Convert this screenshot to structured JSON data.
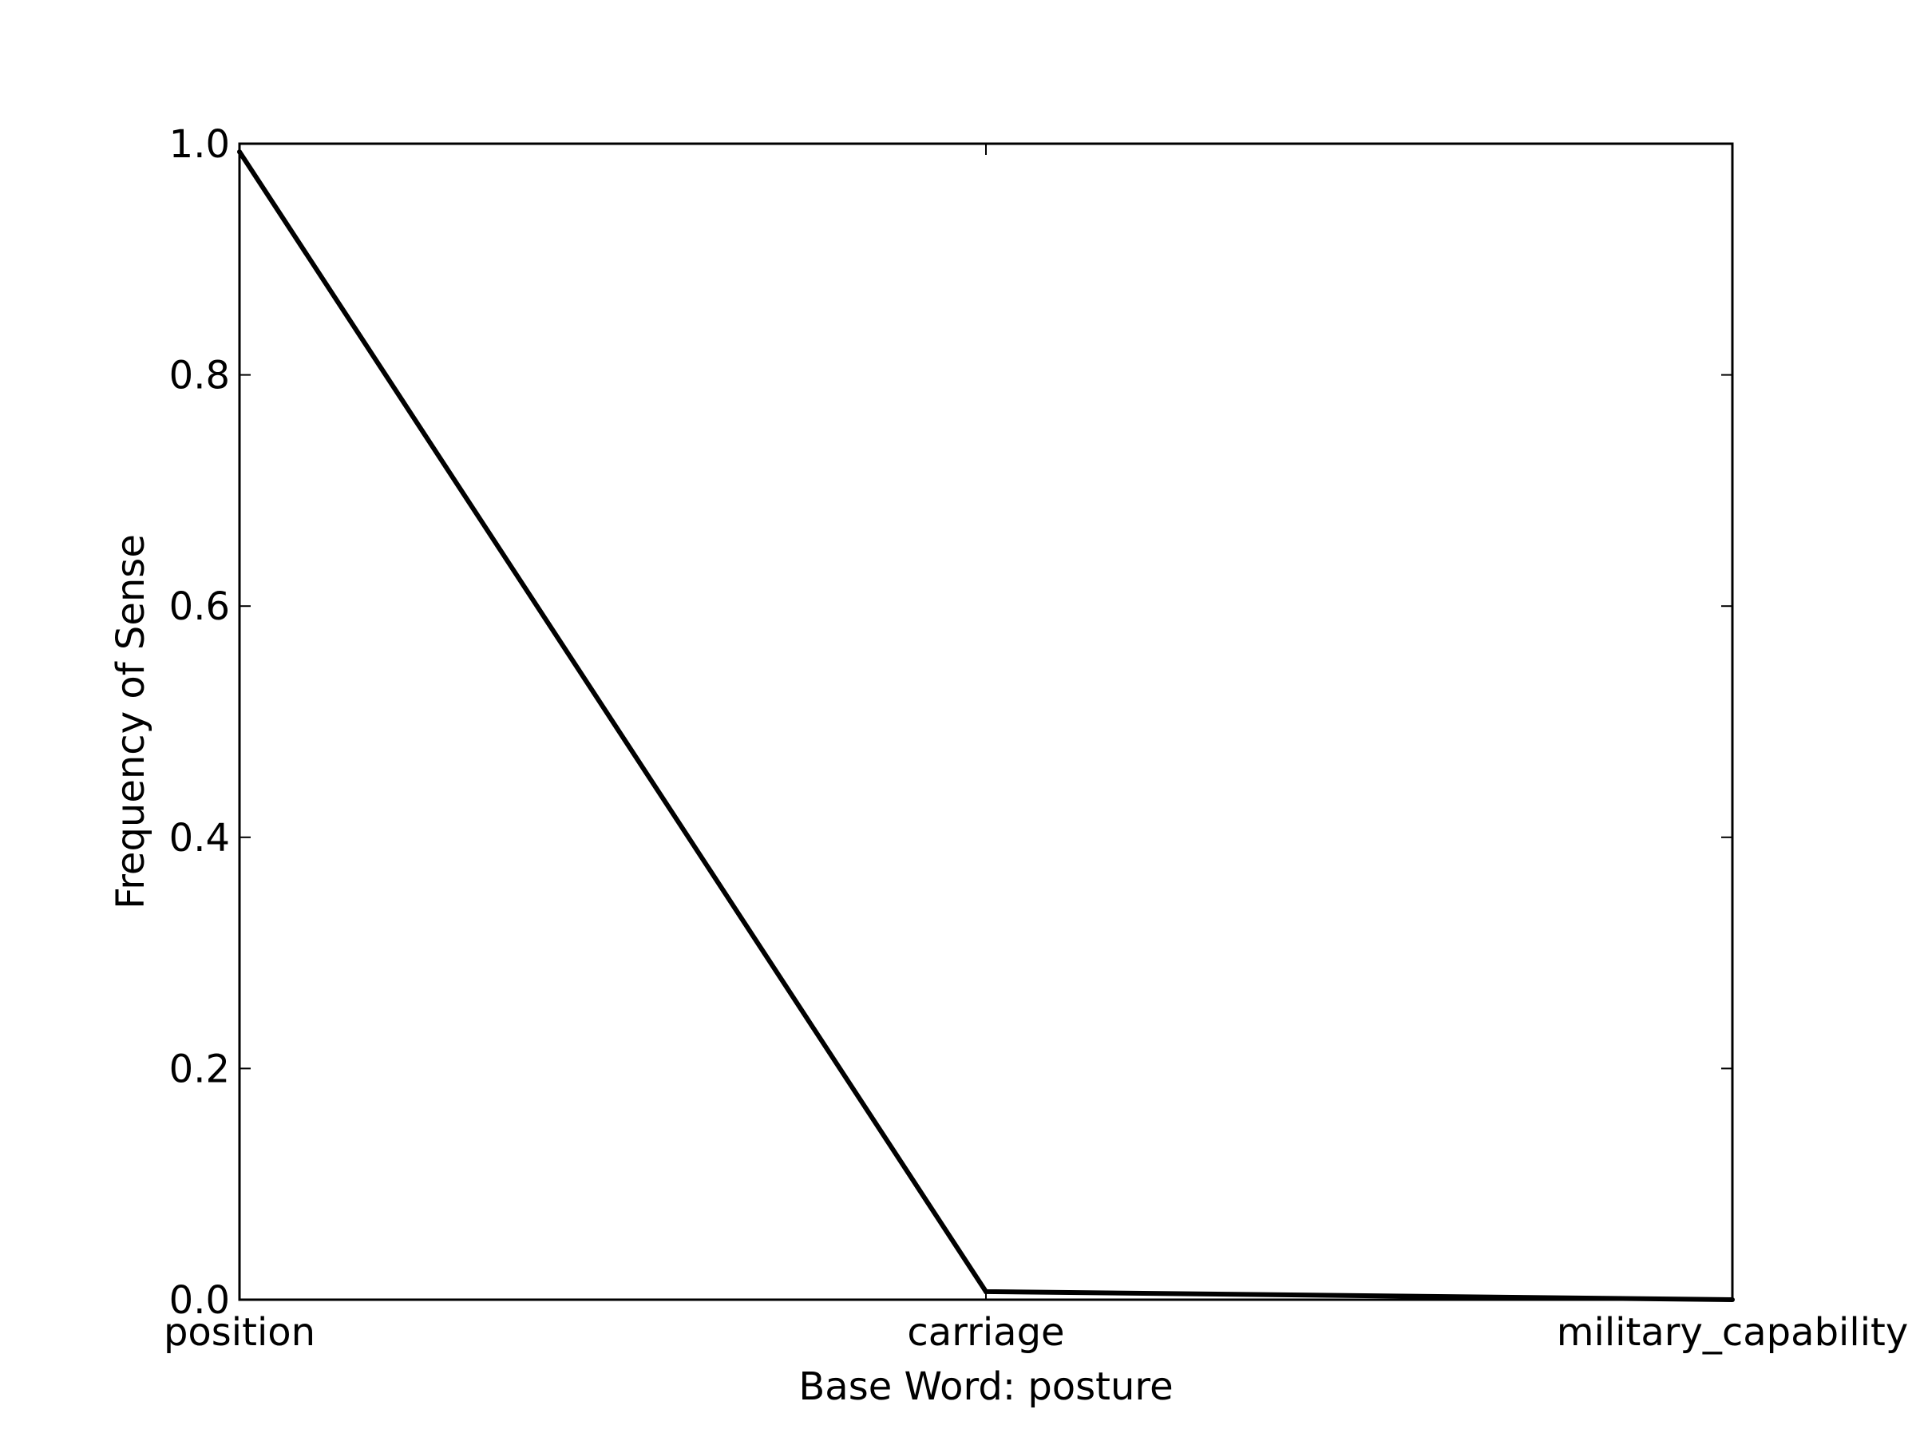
{
  "chart_data": {
    "type": "line",
    "title": "",
    "xlabel": "Base Word: posture",
    "ylabel": "Frequency of Sense",
    "categories": [
      "position",
      "carriage",
      "military_capability"
    ],
    "series": [
      {
        "values": [
          0.993,
          0.007,
          0.0
        ]
      }
    ],
    "ylim": [
      0.0,
      1.0
    ],
    "yticks": [
      "0.0",
      "0.2",
      "0.4",
      "0.6",
      "0.8",
      "1.0"
    ],
    "grid": false,
    "legend": "none",
    "colors": {
      "line": "#000000",
      "axes": "#000000",
      "background": "#ffffff"
    }
  }
}
